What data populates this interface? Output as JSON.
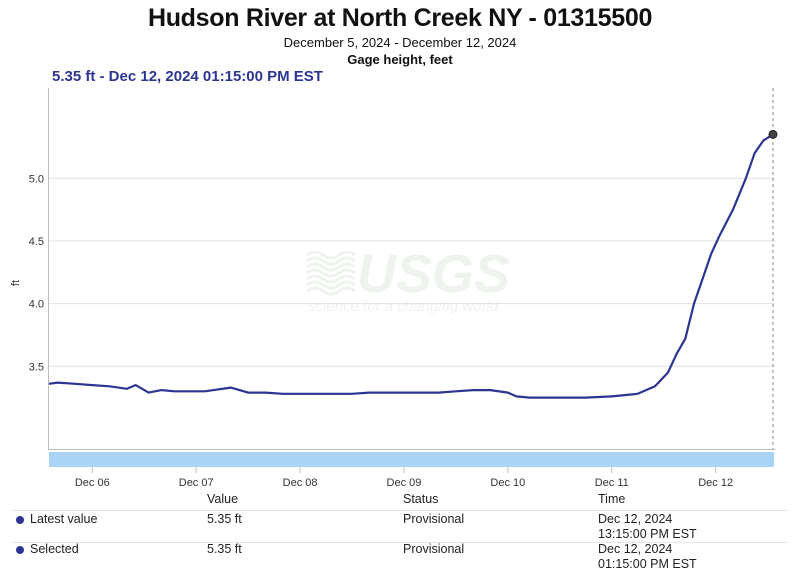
{
  "header": {
    "title": "Hudson River at North Creek NY - 01315500",
    "date_range": "December 5, 2024 - December 12, 2024",
    "parameter": "Gage height, feet"
  },
  "readout": "5.35 ft - Dec 12, 2024 01:15:00 PM EST",
  "watermark": {
    "logo": "USGS",
    "tagline": "science for a changing world"
  },
  "colors": {
    "line": "#2c3592",
    "navigator": "#a9d4f5",
    "grid": "#e0e0e0",
    "watermark": "#eef3ee"
  },
  "chart_data": {
    "type": "line",
    "ylabel": "ft",
    "xlabel": "",
    "ylim": [
      2.84,
      5.72
    ],
    "yticks": [
      "3.5",
      "4.0",
      "4.5",
      "5.0"
    ],
    "xlim": [
      "Dec 05 14:00",
      "Dec 12 13:15"
    ],
    "xticks": [
      "Dec 06",
      "Dec 07",
      "Dec 08",
      "Dec 09",
      "Dec 10",
      "Dec 11",
      "Dec 12"
    ],
    "grid": "horizontal",
    "x": [
      "Dec 05 14:00",
      "Dec 05 16:00",
      "Dec 05 20:00",
      "Dec 06 00:00",
      "Dec 06 04:00",
      "Dec 06 08:00",
      "Dec 06 10:00",
      "Dec 06 13:00",
      "Dec 06 16:00",
      "Dec 06 19:00",
      "Dec 06 22:00",
      "Dec 07 02:00",
      "Dec 07 08:00",
      "Dec 07 12:00",
      "Dec 07 16:00",
      "Dec 07 20:00",
      "Dec 08 00:00",
      "Dec 08 04:00",
      "Dec 08 08:00",
      "Dec 08 12:00",
      "Dec 08 16:00",
      "Dec 08 20:00",
      "Dec 09 00:00",
      "Dec 09 04:00",
      "Dec 09 08:00",
      "Dec 09 12:00",
      "Dec 09 16:00",
      "Dec 09 20:00",
      "Dec 10 00:00",
      "Dec 10 02:00",
      "Dec 10 05:00",
      "Dec 10 12:00",
      "Dec 10 18:00",
      "Dec 11 00:00",
      "Dec 11 06:00",
      "Dec 11 10:00",
      "Dec 11 13:00",
      "Dec 11 15:00",
      "Dec 11 17:00",
      "Dec 11 19:00",
      "Dec 11 21:00",
      "Dec 11 23:00",
      "Dec 12 01:00",
      "Dec 12 04:00",
      "Dec 12 07:00",
      "Dec 12 09:00",
      "Dec 12 11:00",
      "Dec 12 13:15"
    ],
    "series": [
      {
        "values": [
          3.36,
          3.37,
          3.36,
          3.35,
          3.34,
          3.32,
          3.35,
          3.29,
          3.31,
          3.3,
          3.3,
          3.3,
          3.33,
          3.29,
          3.29,
          3.28,
          3.28,
          3.28,
          3.28,
          3.28,
          3.29,
          3.29,
          3.29,
          3.29,
          3.29,
          3.3,
          3.31,
          3.31,
          3.29,
          3.26,
          3.25,
          3.25,
          3.25,
          3.26,
          3.28,
          3.34,
          3.45,
          3.6,
          3.72,
          4.0,
          4.2,
          4.4,
          4.55,
          4.75,
          5.0,
          5.2,
          5.3,
          5.35
        ]
      }
    ]
  },
  "table": {
    "headers": {
      "value": "Value",
      "status": "Status",
      "time": "Time"
    },
    "rows": [
      {
        "label": "Latest value",
        "value": "5.35 ft",
        "status": "Provisional",
        "date": "Dec 12, 2024",
        "time": "13:15:00 PM EST"
      },
      {
        "label": "Selected",
        "value": "5.35 ft",
        "status": "Provisional",
        "date": "Dec 12, 2024",
        "time": "01:15:00 PM EST"
      }
    ]
  }
}
